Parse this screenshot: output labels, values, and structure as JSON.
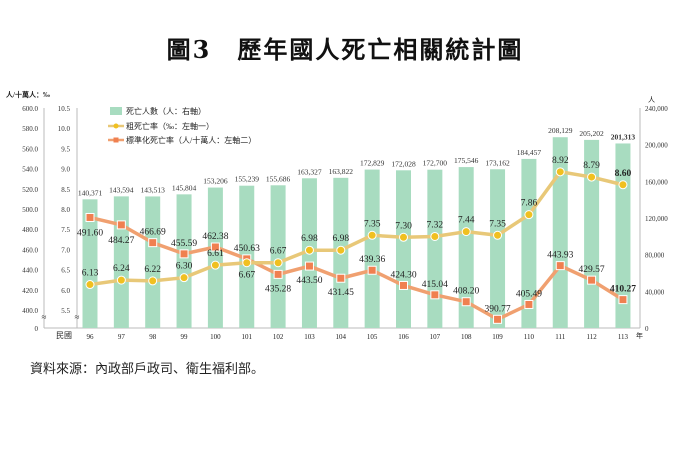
{
  "title": "圖3　歷年國人死亡相關統計圖",
  "source": "資料來源：內政部戶政司、衛生福利部。",
  "chart_data": {
    "type": "bar+line",
    "title": "圖3　歷年國人死亡相關統計圖",
    "x_label_prefix": "民國",
    "x_unit": "年",
    "left_unit": "人/十萬人：‰",
    "right_unit": "人",
    "categories": [
      "96",
      "97",
      "98",
      "99",
      "100",
      "101",
      "102",
      "103",
      "104",
      "105",
      "106",
      "107",
      "108",
      "109",
      "110",
      "111",
      "112",
      "113"
    ],
    "axes": {
      "left_outer": {
        "range": [
          400,
          600
        ],
        "ticks": [
          "0",
          "400.0",
          "420.0",
          "440.0",
          "460.0",
          "480.0",
          "500.0",
          "520.0",
          "540.0",
          "560.0",
          "580.0",
          "600.0"
        ],
        "break": true
      },
      "left_inner": {
        "range": [
          5.5,
          10.5
        ],
        "ticks": [
          "5.5",
          "6.0",
          "6.5",
          "7.0",
          "7.5",
          "8.0",
          "8.5",
          "9.0",
          "9.5",
          "10.0",
          "10.5"
        ],
        "break": true
      },
      "right": {
        "range": [
          0,
          240000
        ],
        "ticks": [
          "0",
          "40,000",
          "80,000",
          "120,000",
          "160,000",
          "200,000",
          "240,000"
        ]
      }
    },
    "series": [
      {
        "name": "死亡人數（人：右軸）",
        "type": "bar",
        "axis": "right",
        "color": "#a8dcc0",
        "values": [
          140371,
          143594,
          143513,
          145804,
          153206,
          155239,
          155686,
          163327,
          163822,
          172829,
          172028,
          172700,
          175546,
          173162,
          184457,
          208129,
          205202,
          201313
        ],
        "labels": [
          "140,371",
          "143,594",
          "143,513",
          "145,804",
          "153,206",
          "155,239",
          "155,686",
          "163,327",
          "163,822",
          "172,829",
          "172,028",
          "172,700",
          "175,546",
          "173,162",
          "184,457",
          "208,129",
          "205,202",
          "201,313"
        ]
      },
      {
        "name": "粗死亡率（‰：左軸一）",
        "type": "line",
        "axis": "left_inner",
        "color": "#f0c020",
        "line_color": "#e8c878",
        "values": [
          6.13,
          6.24,
          6.22,
          6.3,
          6.61,
          6.67,
          6.67,
          6.98,
          6.98,
          7.35,
          7.3,
          7.32,
          7.44,
          7.35,
          7.86,
          8.92,
          8.79,
          8.6
        ],
        "labels": [
          "6.13",
          "6.24",
          "6.22",
          "6.30",
          "6.61",
          "6.67",
          "6.67",
          "6.98",
          "6.98",
          "7.35",
          "7.30",
          "7.32",
          "7.44",
          "7.35",
          "7.86",
          "8.92",
          "8.79",
          "8.60"
        ]
      },
      {
        "name": "標準化死亡率（人/十萬人：左軸二）",
        "type": "line",
        "axis": "left_outer",
        "color": "#f08050",
        "line_color": "#f0a070",
        "values": [
          491.6,
          484.27,
          466.69,
          455.59,
          462.38,
          450.63,
          435.28,
          443.5,
          431.45,
          439.36,
          424.3,
          415.04,
          408.2,
          390.77,
          405.49,
          443.93,
          429.57,
          410.27
        ],
        "labels": [
          "491.60",
          "484.27",
          "466.69",
          "455.59",
          "462.38",
          "450.63",
          "435.28",
          "443.50",
          "431.45",
          "439.36",
          "424.30",
          "415.04",
          "408.20",
          "390.77",
          "405.49",
          "443.93",
          "429.57",
          "410.27"
        ]
      }
    ],
    "legend_placement": "top-left",
    "grid": false
  }
}
